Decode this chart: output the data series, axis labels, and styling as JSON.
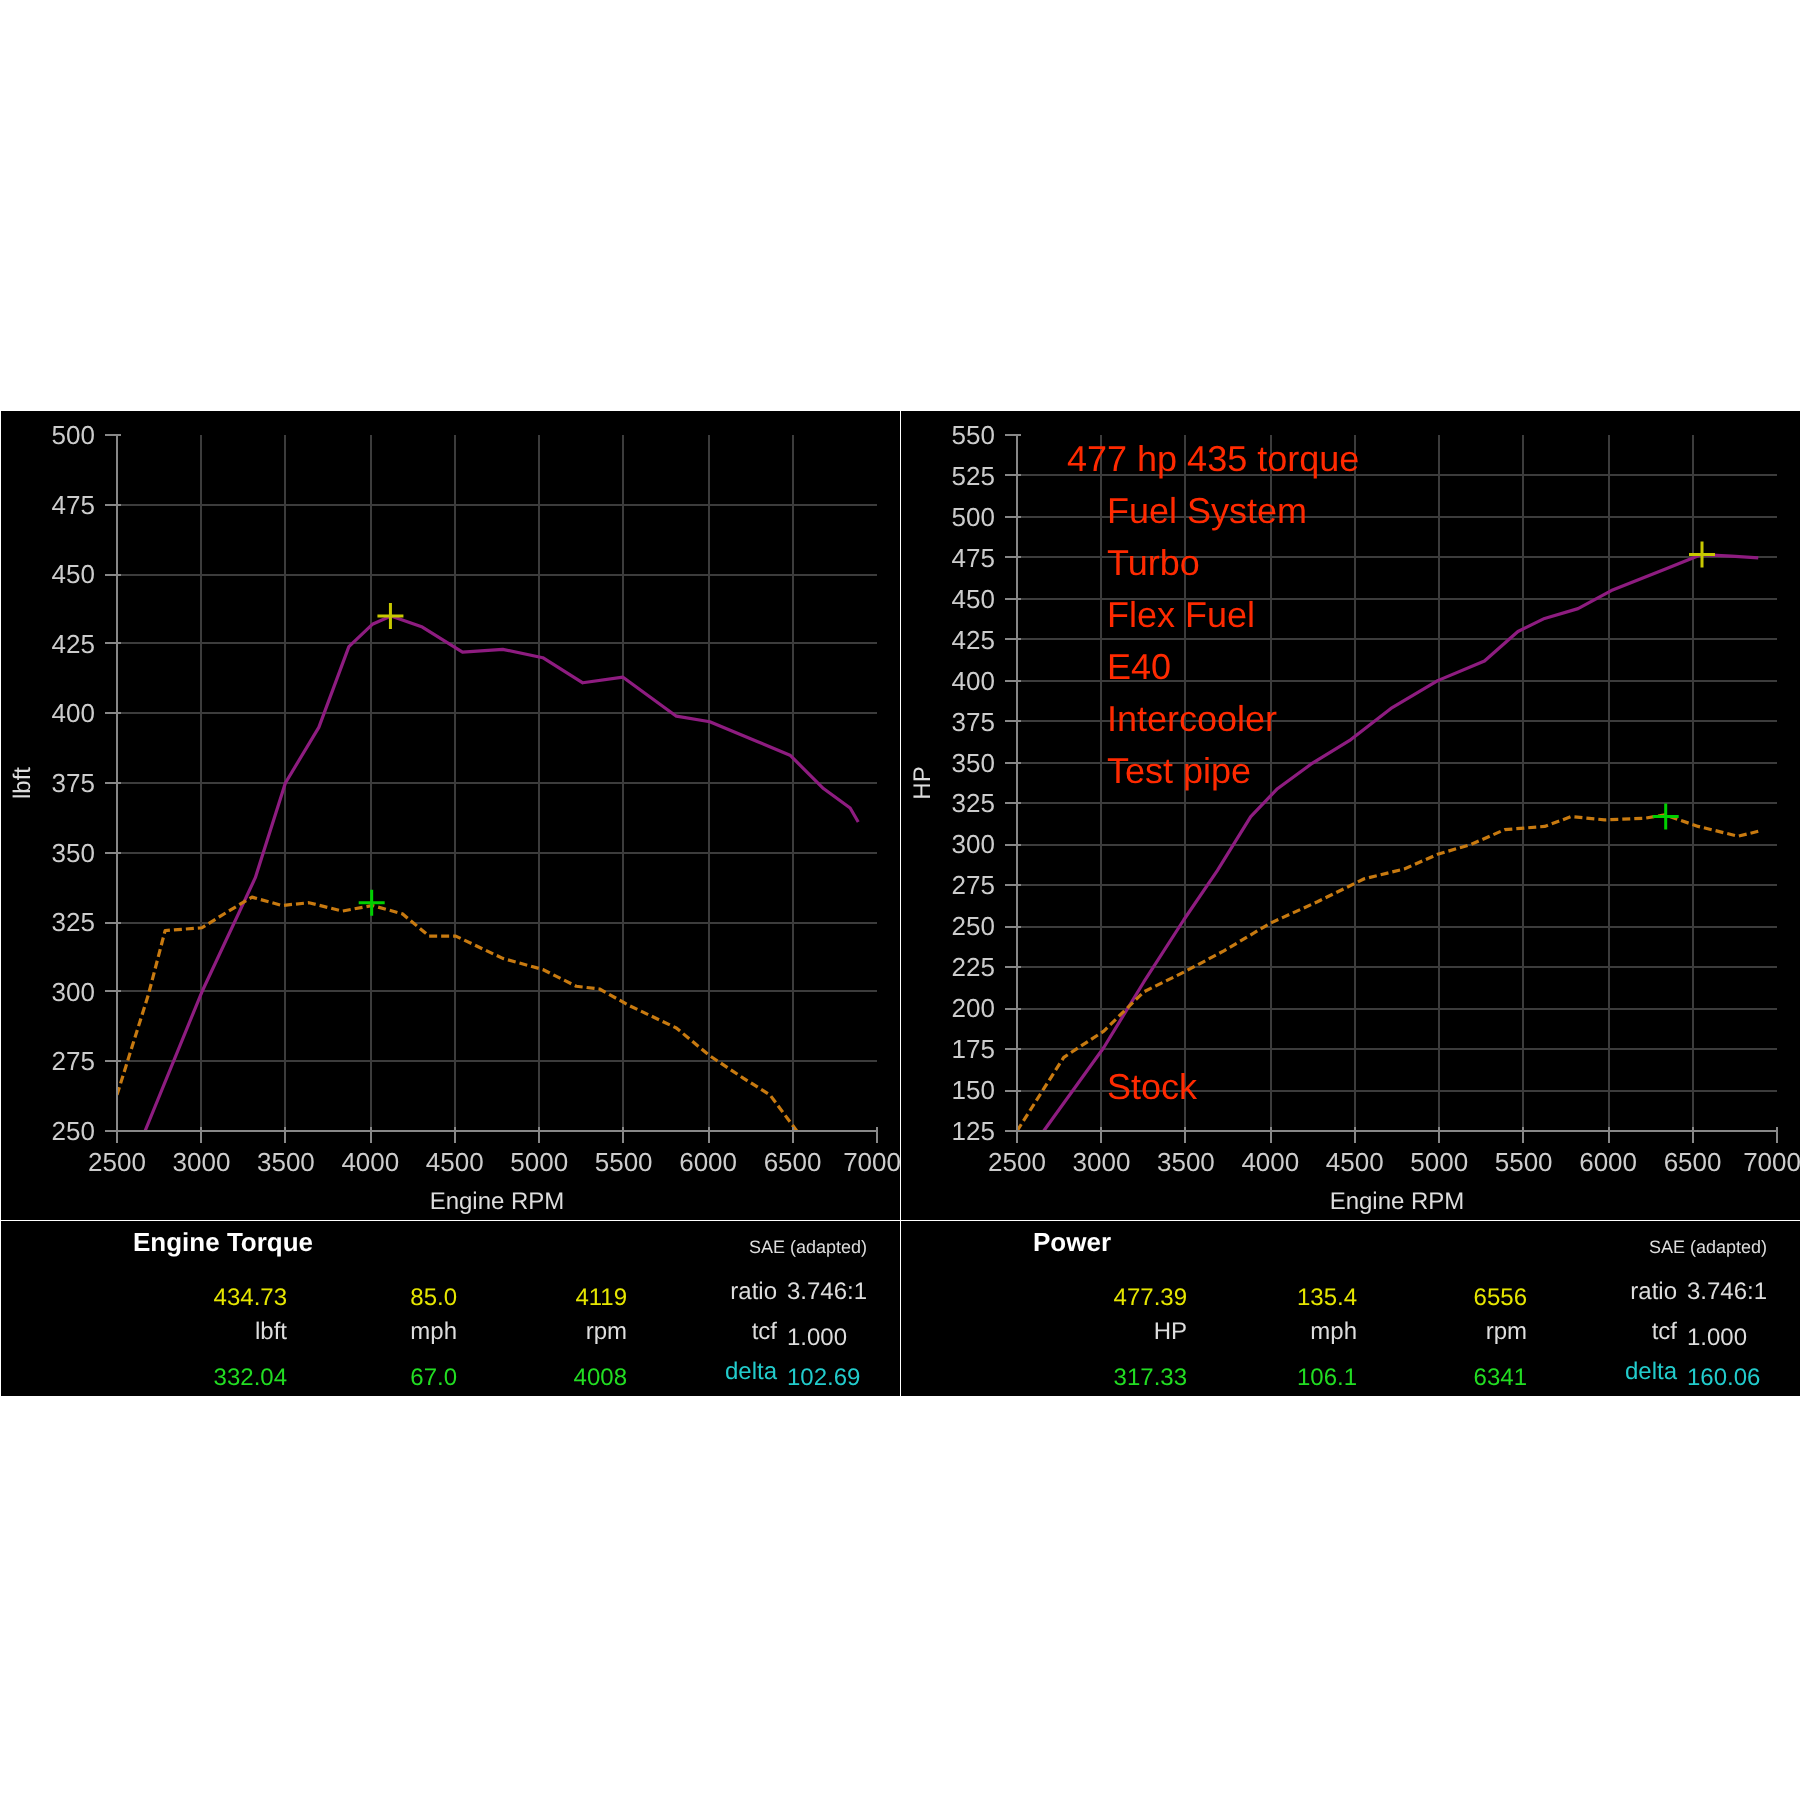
{
  "chart_data": [
    {
      "type": "line",
      "title": "Engine Torque",
      "xlabel": "Engine RPM",
      "ylabel": "lbft",
      "xlim": [
        2500,
        7000
      ],
      "xticks": [
        2500,
        3000,
        3500,
        4000,
        4500,
        5000,
        5500,
        6000,
        6500,
        7000
      ],
      "ylim": [
        250,
        500
      ],
      "yticks": [
        250,
        275,
        300,
        325,
        350,
        375,
        400,
        425,
        450,
        475,
        500
      ],
      "grid": true,
      "marker": "none",
      "series": [
        {
          "color": "#8e1c80",
          "line_style": "solid",
          "x": [
            2666,
            3003,
            3319,
            3497,
            3695,
            3873,
            4012,
            4122,
            4308,
            4546,
            4784,
            5021,
            5258,
            5496,
            5654,
            5812,
            6010,
            6287,
            6485,
            6683,
            6841,
            6889
          ],
          "values": [
            250,
            300,
            341,
            375,
            395,
            424,
            432,
            435,
            431,
            422,
            423,
            420,
            411,
            413,
            406,
            399,
            397,
            390,
            385,
            373,
            366,
            361
          ]
        },
        {
          "color": "#c87a10",
          "line_style": "dashed",
          "x": [
            2500,
            2686,
            2785,
            3003,
            3161,
            3299,
            3477,
            3636,
            3834,
            4012,
            4190,
            4348,
            4506,
            4784,
            5021,
            5219,
            5357,
            5535,
            5812,
            6010,
            6208,
            6366,
            6525
          ],
          "values": [
            263,
            299,
            322,
            323,
            329,
            334,
            331,
            332,
            329,
            331,
            328,
            320,
            320,
            312,
            308,
            302,
            301,
            295,
            287,
            277,
            269,
            263,
            250
          ]
        },
        {
          "type": "scatter",
          "color": "#c8c800",
          "marker": "cross",
          "x": [
            4119
          ],
          "values": [
            435
          ]
        },
        {
          "type": "scatter",
          "color": "#00d000",
          "marker": "cross",
          "x": [
            4008
          ],
          "values": [
            332
          ]
        }
      ],
      "annotations": [
        "SAE (adapted)",
        "434.73",
        "85.0",
        "4119",
        "ratio",
        "3.746:1",
        "lbft",
        "mph",
        "rpm",
        "tcf",
        "1.000",
        "332.04",
        "67.0",
        "4008",
        "delta",
        "102.69"
      ]
    },
    {
      "type": "line",
      "title": "Power",
      "xlabel": "Engine RPM",
      "ylabel": "HP",
      "xlim": [
        2500,
        7000
      ],
      "xticks": [
        2500,
        3000,
        3500,
        4000,
        4500,
        5000,
        5500,
        6000,
        6500,
        7000
      ],
      "ylim": [
        125,
        550
      ],
      "yticks": [
        125,
        150,
        175,
        200,
        225,
        250,
        275,
        300,
        325,
        350,
        375,
        400,
        425,
        450,
        475,
        500,
        525,
        550
      ],
      "grid": true,
      "marker": "none",
      "series": [
        {
          "color": "#8e1c80",
          "line_style": "solid",
          "x": [
            2658,
            3014,
            3251,
            3488,
            3686,
            3884,
            4042,
            4240,
            4477,
            4714,
            4991,
            5268,
            5466,
            5624,
            5822,
            6019,
            6336,
            6553,
            6731,
            6889
          ],
          "values": [
            125,
            176,
            216,
            254,
            284,
            317,
            334,
            349,
            364,
            383,
            400,
            412,
            430,
            438,
            444,
            455,
            468,
            477,
            476,
            475
          ]
        },
        {
          "name": "Stock",
          "color": "#c87a10",
          "line_style": "dashed",
          "x": [
            2500,
            2777,
            3014,
            3251,
            3488,
            3725,
            4002,
            4279,
            4556,
            4793,
            4991,
            5189,
            5387,
            5624,
            5782,
            5980,
            6217,
            6336,
            6533,
            6770,
            6889
          ],
          "values": [
            125,
            170,
            186,
            210,
            222,
            235,
            252,
            265,
            279,
            285,
            294,
            300,
            309,
            311,
            317,
            315,
            316,
            318,
            311,
            305,
            308
          ]
        },
        {
          "type": "scatter",
          "color": "#c8c800",
          "marker": "cross",
          "x": [
            6556
          ],
          "values": [
            477
          ]
        },
        {
          "type": "scatter",
          "color": "#00d000",
          "marker": "cross",
          "x": [
            6341
          ],
          "values": [
            317
          ]
        }
      ],
      "annotations": [
        "477 hp 435 torque",
        "Fuel System",
        "Turbo",
        "Flex Fuel",
        "E40",
        "Intercooler",
        "Test pipe",
        "SAE (adapted)",
        "477.39",
        "135.4",
        "6556",
        "ratio",
        "3.746:1",
        "HP",
        "mph",
        "rpm",
        "tcf",
        "1.000",
        "317.33",
        "106.1",
        "6341",
        "delta",
        "160.06"
      ]
    }
  ]
}
